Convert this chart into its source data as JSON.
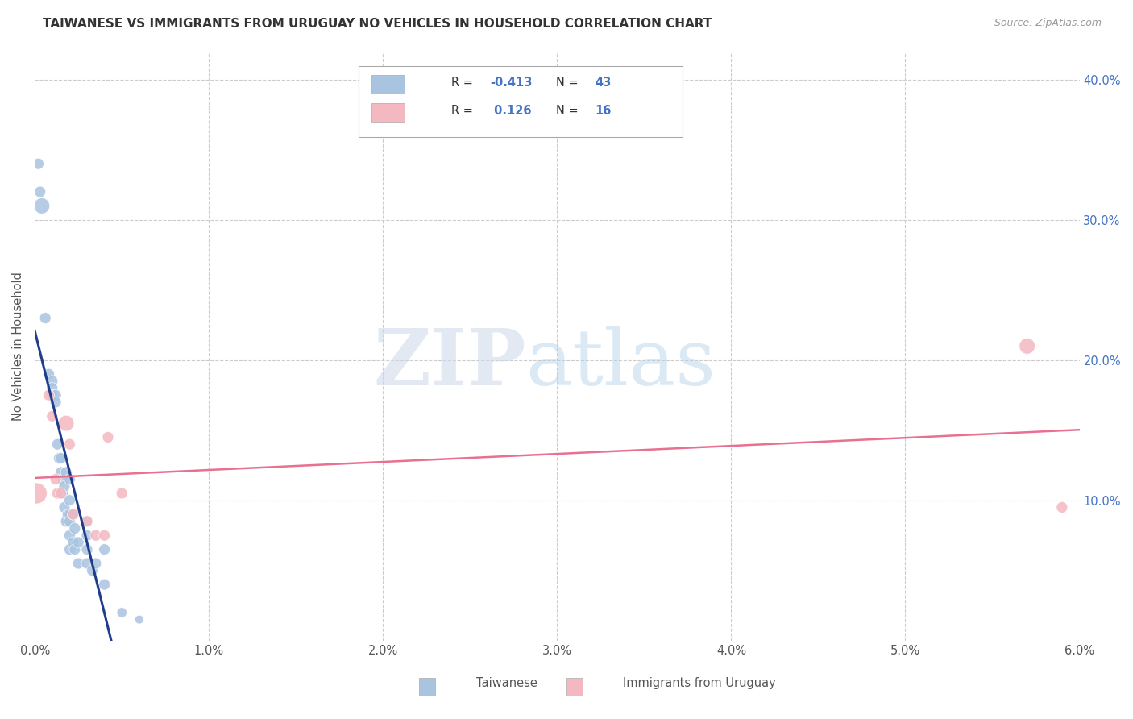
{
  "title": "TAIWANESE VS IMMIGRANTS FROM URUGUAY NO VEHICLES IN HOUSEHOLD CORRELATION CHART",
  "source": "Source: ZipAtlas.com",
  "ylabel": "No Vehicles in Household",
  "legend_label1": "Taiwanese",
  "legend_label2": "Immigrants from Uruguay",
  "r1": "-0.413",
  "n1": "43",
  "r2": "0.126",
  "n2": "16",
  "color_taiwanese": "#a8c4e0",
  "color_uruguay": "#f4b8c1",
  "line_color_taiwanese": "#1f3d8a",
  "line_color_uruguay": "#e87090",
  "taiwanese_x": [
    0.0002,
    0.0003,
    0.0004,
    0.0006,
    0.0008,
    0.001,
    0.001,
    0.001,
    0.0012,
    0.0012,
    0.0013,
    0.0014,
    0.0015,
    0.0015,
    0.0016,
    0.0016,
    0.0017,
    0.0017,
    0.0018,
    0.0018,
    0.0019,
    0.002,
    0.002,
    0.002,
    0.002,
    0.002,
    0.002,
    0.0022,
    0.0022,
    0.0023,
    0.0023,
    0.0025,
    0.0025,
    0.003,
    0.003,
    0.003,
    0.003,
    0.0033,
    0.0035,
    0.004,
    0.004,
    0.005,
    0.006
  ],
  "taiwanese_y": [
    0.34,
    0.32,
    0.31,
    0.23,
    0.19,
    0.185,
    0.18,
    0.175,
    0.175,
    0.17,
    0.14,
    0.13,
    0.13,
    0.12,
    0.115,
    0.105,
    0.11,
    0.095,
    0.12,
    0.085,
    0.09,
    0.115,
    0.1,
    0.09,
    0.085,
    0.075,
    0.065,
    0.09,
    0.07,
    0.08,
    0.065,
    0.07,
    0.055,
    0.085,
    0.075,
    0.065,
    0.055,
    0.05,
    0.055,
    0.065,
    0.04,
    0.02,
    0.015
  ],
  "taiwanese_sizes": [
    100,
    100,
    200,
    100,
    100,
    100,
    100,
    100,
    100,
    100,
    100,
    100,
    100,
    100,
    100,
    100,
    100,
    100,
    100,
    100,
    100,
    100,
    100,
    100,
    100,
    100,
    100,
    100,
    100,
    100,
    100,
    100,
    100,
    100,
    100,
    100,
    100,
    100,
    100,
    100,
    100,
    80,
    60
  ],
  "uruguay_x": [
    0.0001,
    0.0008,
    0.001,
    0.0012,
    0.0013,
    0.0015,
    0.0018,
    0.002,
    0.0022,
    0.003,
    0.0035,
    0.004,
    0.0042,
    0.005,
    0.057,
    0.059
  ],
  "uruguay_y": [
    0.105,
    0.175,
    0.16,
    0.115,
    0.105,
    0.105,
    0.155,
    0.14,
    0.09,
    0.085,
    0.075,
    0.075,
    0.145,
    0.105,
    0.21,
    0.095
  ],
  "uruguay_sizes": [
    350,
    100,
    100,
    100,
    100,
    100,
    200,
    100,
    100,
    100,
    100,
    100,
    100,
    100,
    200,
    100
  ],
  "xlim": [
    0.0,
    0.06
  ],
  "ylim": [
    0.0,
    0.42
  ],
  "watermark_zip": "ZIP",
  "watermark_atlas": "atlas",
  "background_color": "#ffffff",
  "grid_color": "#cccccc",
  "grid_linestyle": "--"
}
